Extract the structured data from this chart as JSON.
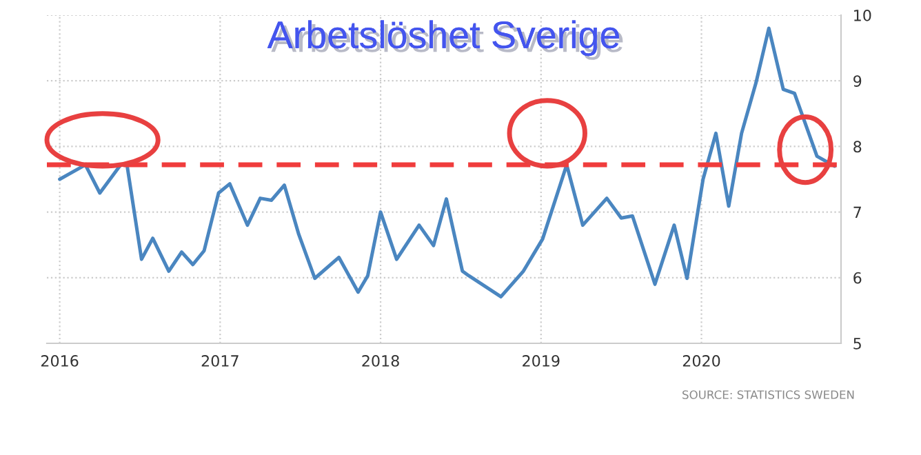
{
  "chart_data": {
    "type": "line",
    "title": "Arbetslöshet Sverige",
    "x": [
      2016.0,
      2016.16,
      2016.25,
      2016.38,
      2016.42,
      2016.51,
      2016.58,
      2016.68,
      2016.76,
      2016.83,
      2016.9,
      2016.99,
      2017.06,
      2017.17,
      2017.25,
      2017.32,
      2017.4,
      2017.49,
      2017.59,
      2017.74,
      2017.86,
      2017.92,
      2018.0,
      2018.1,
      2018.24,
      2018.33,
      2018.41,
      2018.51,
      2018.55,
      2018.75,
      2018.89,
      2019.01,
      2019.16,
      2019.26,
      2019.41,
      2019.5,
      2019.57,
      2019.71,
      2019.83,
      2019.91,
      2020.01,
      2020.09,
      2020.17,
      2020.25,
      2020.34,
      2020.42,
      2020.51,
      2020.58,
      2020.72,
      2020.83
    ],
    "series": [
      {
        "color": "#4a86c0",
        "values": [
          7.5,
          7.72,
          7.29,
          7.72,
          7.71,
          6.28,
          6.6,
          6.1,
          6.39,
          6.2,
          6.41,
          7.29,
          7.43,
          6.8,
          7.21,
          7.18,
          7.41,
          6.66,
          5.99,
          6.31,
          5.78,
          6.03,
          7.0,
          6.28,
          6.8,
          6.49,
          7.2,
          6.1,
          6.03,
          5.71,
          6.1,
          6.59,
          7.72,
          6.8,
          7.21,
          6.91,
          6.94,
          5.9,
          6.8,
          5.99,
          7.5,
          8.2,
          7.09,
          8.2,
          8.97,
          9.8,
          8.87,
          8.81,
          7.85,
          7.7
        ]
      }
    ],
    "xlim": [
      2015.92,
      2020.87
    ],
    "xticks": [
      2016,
      2017,
      2018,
      2019,
      2020
    ],
    "ylim": [
      5,
      10
    ],
    "yticks": [
      5,
      6,
      7,
      8,
      9,
      10
    ],
    "ref_lines": [
      {
        "axis": "y",
        "value": 7.72,
        "color": "#f03c3c",
        "line_style": "dashed"
      }
    ],
    "grid": true,
    "annotations": [
      "SOURCE: STATISTICS SWEDEN"
    ]
  }
}
